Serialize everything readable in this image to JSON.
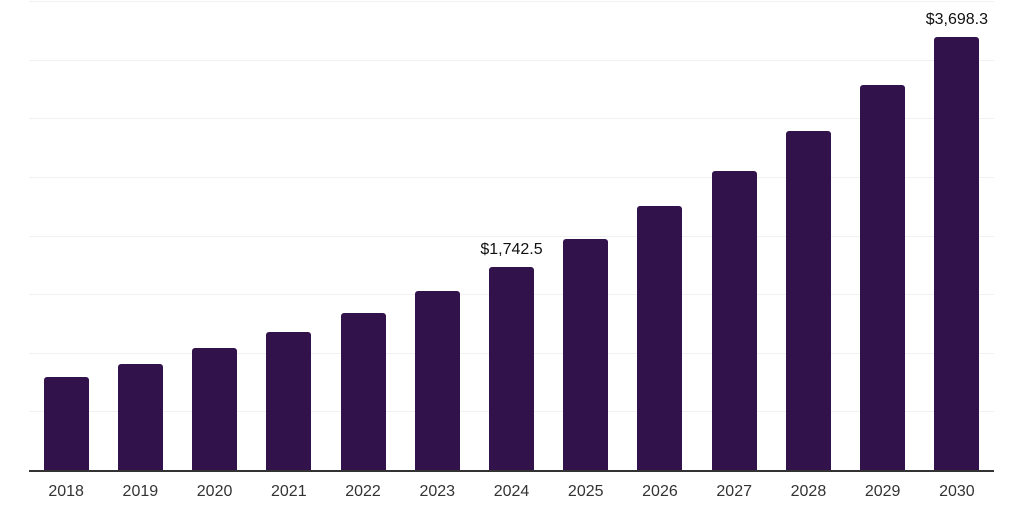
{
  "chart_data": {
    "type": "bar",
    "categories": [
      "2018",
      "2019",
      "2020",
      "2021",
      "2022",
      "2023",
      "2024",
      "2025",
      "2026",
      "2027",
      "2028",
      "2029",
      "2030"
    ],
    "values": [
      805,
      910,
      1050,
      1185,
      1345,
      1537,
      1742.5,
      1983,
      2262,
      2556,
      2903,
      3288,
      3698.3
    ],
    "data_labels": [
      null,
      null,
      null,
      null,
      null,
      null,
      "$1,742.5",
      null,
      null,
      null,
      null,
      null,
      "$3,698.3"
    ],
    "title": "",
    "xlabel": "",
    "ylabel": "",
    "ylim": [
      0,
      4000
    ],
    "gridline_interval": 500,
    "grid": "horizontal-only",
    "y_tick_labels_visible": false,
    "legend": "none",
    "colors": {
      "bar": "#32124B",
      "axis_line": "#333333",
      "gridline": "#f1f1f1",
      "x_tick_label": "#333333",
      "value_label": "#111111",
      "background": "#ffffff"
    }
  }
}
